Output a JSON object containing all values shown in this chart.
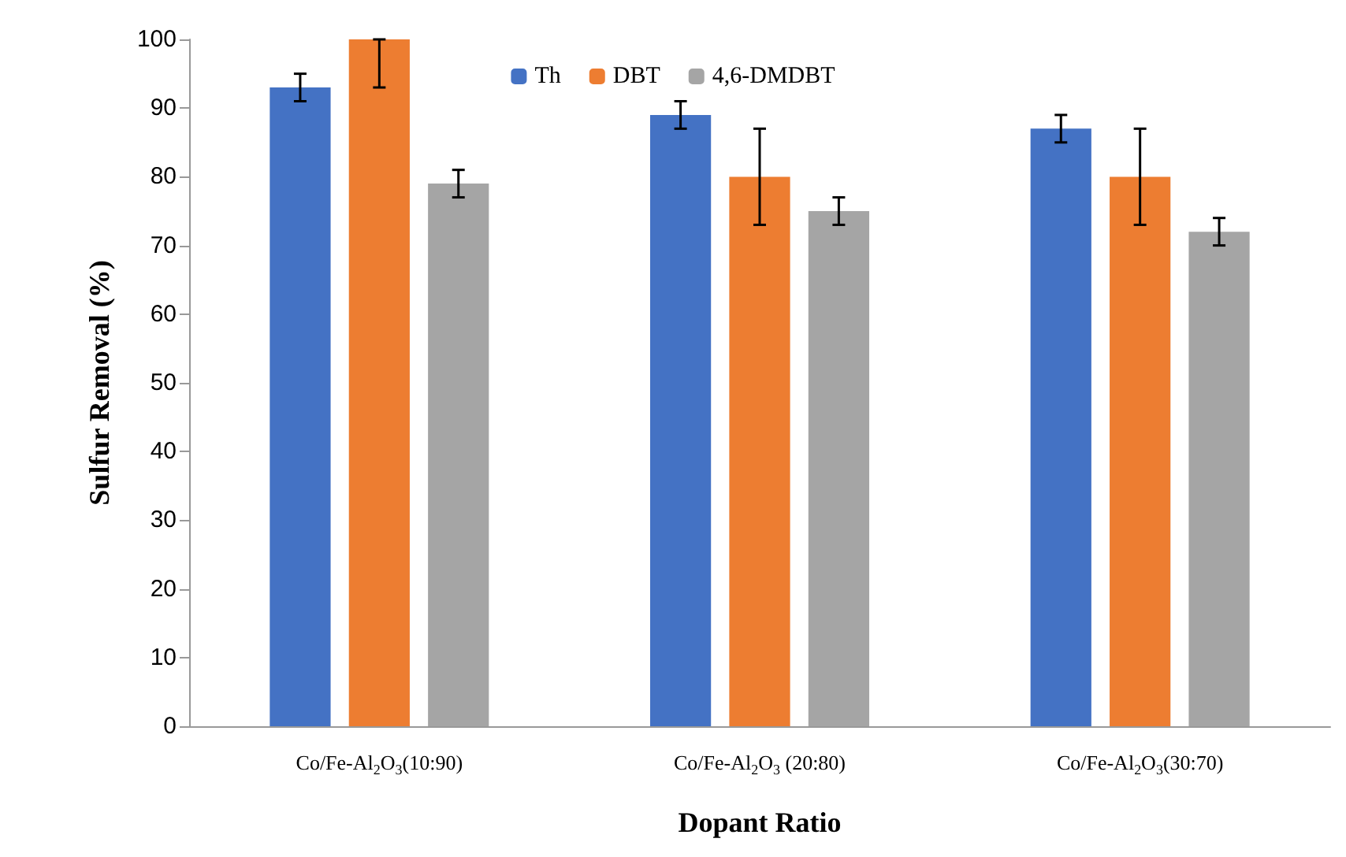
{
  "chart_data": {
    "type": "bar",
    "xlabel": "Dopant Ratio",
    "ylabel": "Sulfur Removal (%)",
    "categories": [
      "Co/Fe-Al$_{2}$O$_{3}$(10:90)",
      "Co/Fe-Al$_{2}$O$_{3}$ (20:80)",
      "Co/Fe-Al$_{2}$O$_{3}$(30:70)"
    ],
    "series": [
      {
        "name": "Th",
        "color": "#4472c4",
        "values": [
          93,
          89,
          87
        ],
        "errors": [
          2,
          2,
          2
        ]
      },
      {
        "name": "DBT",
        "color": "#ed7d31",
        "values": [
          100,
          80,
          80
        ],
        "errors": [
          [
            93,
            100
          ],
          7,
          7
        ]
      },
      {
        "name": "4,6-DMDBT",
        "color": "#a5a5a5",
        "values": [
          79,
          75,
          72
        ],
        "errors": [
          2,
          2,
          2
        ]
      }
    ],
    "ylim": [
      0,
      100
    ],
    "yticks": [
      0,
      10,
      20,
      30,
      40,
      50,
      60,
      70,
      80,
      90,
      100
    ],
    "grid": false,
    "legend": "top"
  }
}
